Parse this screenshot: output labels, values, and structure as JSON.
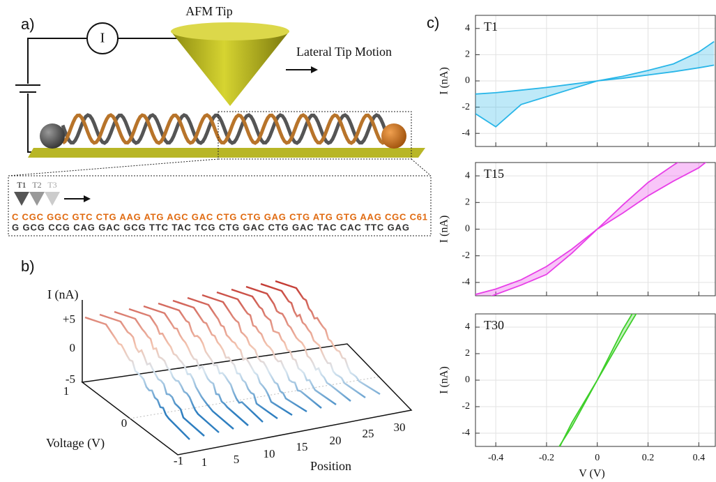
{
  "panel_a": {
    "label": "a)",
    "meter": "I",
    "tip": "AFM Tip",
    "motion": "Lateral Tip Motion",
    "tips": [
      "T1",
      "T2",
      "T3"
    ],
    "strand_top": "C CGC GGC GTC CTG AAG ATG AGC GAC CTG CTG GAG CTG ATG GTG AAG CGC C61",
    "strand_bottom": "G GCG CCG CAG GAC GCG TTC TAC TCG CTG GAC CTG GAC TAC CAC TTC  GAG"
  },
  "panel_b": {
    "label": "b)",
    "z_label": "I (nA)",
    "z_ticks": [
      "+5",
      "0",
      "-5"
    ],
    "voltage_label": "Voltage (V)",
    "voltage_ticks": [
      "1",
      "0",
      "-1"
    ],
    "position_label": "Position",
    "position_ticks": [
      "1",
      "5",
      "10",
      "15",
      "20",
      "25",
      "30"
    ]
  },
  "panel_c": {
    "label": "c)"
  },
  "chart_data": [
    {
      "type": "line",
      "title": "T1",
      "ylabel": "I (nA)",
      "x": [
        -0.48,
        -0.4,
        -0.3,
        -0.2,
        -0.1,
        0,
        0.1,
        0.2,
        0.3,
        0.4,
        0.46
      ],
      "series": [
        {
          "color": "#29b6e8",
          "values": [
            -1,
            -0.9,
            -0.7,
            -0.5,
            -0.25,
            0,
            0.35,
            0.8,
            1.3,
            2.2,
            3
          ]
        },
        {
          "color": "#29b6e8",
          "values": [
            -2.5,
            -3.5,
            -1.8,
            -1.2,
            -0.6,
            0,
            0.2,
            0.45,
            0.7,
            1,
            1.2
          ]
        }
      ],
      "xlim": [
        -0.48,
        0.465
      ],
      "ylim": [
        -5,
        5
      ],
      "xticks": [
        -0.4,
        -0.2,
        0,
        0.2,
        0.4
      ],
      "yticks": [
        -4,
        -2,
        0,
        2,
        4
      ],
      "grid": true,
      "xtick_labels": false
    },
    {
      "type": "line",
      "title": "T15",
      "ylabel": "I (nA)",
      "x": [
        -0.48,
        -0.4,
        -0.3,
        -0.2,
        -0.1,
        0,
        0.1,
        0.2,
        0.3,
        0.4,
        0.46
      ],
      "series": [
        {
          "color": "#e83ee8",
          "values": [
            -4.9,
            -4.5,
            -3.8,
            -2.8,
            -1.5,
            0,
            1.8,
            3.5,
            4.8,
            6,
            7
          ]
        },
        {
          "color": "#e83ee8",
          "values": [
            -5.5,
            -4.9,
            -4.2,
            -3.4,
            -1.8,
            0,
            1.2,
            2.5,
            3.6,
            4.6,
            5.5
          ]
        }
      ],
      "xlim": [
        -0.48,
        0.465
      ],
      "ylim": [
        -5,
        5
      ],
      "xticks": [
        -0.4,
        -0.2,
        0,
        0.2,
        0.4
      ],
      "yticks": [
        -4,
        -2,
        0,
        2,
        4
      ],
      "grid": true,
      "xtick_labels": false
    },
    {
      "type": "line",
      "title": "T30",
      "ylabel": "I (nA)",
      "xlabel": "V (V)",
      "x": [
        -0.2,
        -0.1,
        0,
        0.1,
        0.2
      ],
      "series": [
        {
          "color": "#3ecf2a",
          "values": [
            -6.5,
            -3.5,
            0,
            3.8,
            7
          ]
        },
        {
          "color": "#3ecf2a",
          "values": [
            -7,
            -3.2,
            0,
            3.3,
            6.5
          ]
        }
      ],
      "xlim": [
        -0.48,
        0.465
      ],
      "ylim": [
        -5,
        5
      ],
      "xticks": [
        -0.4,
        -0.2,
        0,
        0.2,
        0.4
      ],
      "yticks": [
        -4,
        -2,
        0,
        2,
        4
      ],
      "grid": true,
      "xtick_labels": true
    }
  ]
}
